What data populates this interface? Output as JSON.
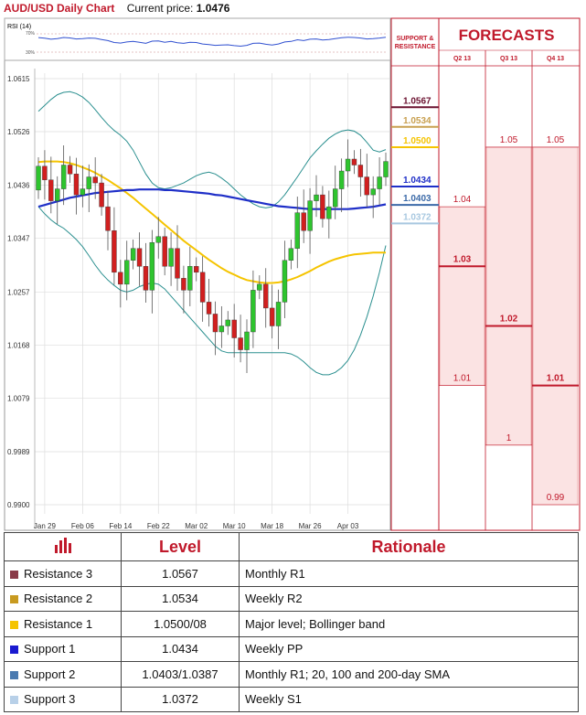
{
  "header": {
    "title": "AUD/USD Daily Chart",
    "price_label": "Current price:",
    "price_value": "1.0476"
  },
  "rsi": {
    "label": "RSI (14)",
    "ticks": [
      "70%",
      "30%"
    ]
  },
  "colors": {
    "red": "#c0192b",
    "pink": "#fbe3e3",
    "pink_border": "#e88a8a",
    "bb": "#2a8f8f",
    "sma_yellow": "#f5c400",
    "sma_blue": "#1f2fc8",
    "sma_gray": "#cccccc",
    "up": "#2ec42e",
    "down": "#d11f1f"
  },
  "chart_data": {
    "type": "candlestick",
    "title": "AUD/USD Daily Chart",
    "y_ticks": [
      1.0615,
      1.0526,
      1.0436,
      1.0347,
      1.0257,
      1.0168,
      1.0079,
      0.9989,
      0.99
    ],
    "ylim": [
      0.99,
      1.0615
    ],
    "x_ticks": [
      "Jan 29",
      "Feb 06",
      "Feb 14",
      "Feb 22",
      "Mar 02",
      "Mar 10",
      "Mar 18",
      "Mar 26",
      "Apr 03"
    ],
    "x_tick_index": [
      1,
      7,
      13,
      19,
      25,
      31,
      37,
      43,
      49
    ],
    "closes": [
      1.0468,
      1.0445,
      1.041,
      1.043,
      1.047,
      1.0455,
      1.042,
      1.043,
      1.045,
      1.044,
      1.04,
      1.036,
      1.029,
      1.027,
      1.031,
      1.033,
      1.03,
      1.026,
      1.034,
      1.035,
      1.03,
      1.033,
      1.028,
      1.026,
      1.03,
      1.029,
      1.024,
      1.022,
      1.019,
      1.02,
      1.021,
      1.018,
      1.016,
      1.019,
      1.026,
      1.027,
      1.023,
      1.02,
      1.024,
      1.031,
      1.033,
      1.039,
      1.036,
      1.041,
      1.042,
      1.038,
      1.04,
      1.043,
      1.046,
      1.048,
      1.047,
      1.045,
      1.042,
      1.043,
      1.045,
      1.0476
    ],
    "sma_yellow": [
      1.0475,
      1.0476,
      1.0476,
      1.0476,
      1.0475,
      1.0473,
      1.047,
      1.0466,
      1.0462,
      1.0457,
      1.0451,
      1.0445,
      1.0438,
      1.0431,
      1.0423,
      1.0415,
      1.0406,
      1.0397,
      1.0388,
      1.0379,
      1.037,
      1.0361,
      1.0352,
      1.0343,
      1.0335,
      1.0327,
      1.0319,
      1.0311,
      1.0304,
      1.0297,
      1.0291,
      1.0286,
      1.0281,
      1.0277,
      1.0275,
      1.0273,
      1.0272,
      1.0272,
      1.0273,
      1.0275,
      1.0278,
      1.0282,
      1.0287,
      1.0292,
      1.0298,
      1.0303,
      1.0308,
      1.0312,
      1.0315,
      1.0318,
      1.032,
      1.0321,
      1.0322,
      1.0323,
      1.0323,
      1.0323
    ],
    "sma_blue": [
      1.04,
      1.0403,
      1.0406,
      1.0409,
      1.0412,
      1.0415,
      1.0417,
      1.0419,
      1.0421,
      1.0423,
      1.0424,
      1.0425,
      1.0426,
      1.0427,
      1.0428,
      1.0428,
      1.0429,
      1.0429,
      1.0429,
      1.0429,
      1.0428,
      1.0428,
      1.0427,
      1.0426,
      1.0425,
      1.0424,
      1.0423,
      1.0422,
      1.042,
      1.0419,
      1.0417,
      1.0415,
      1.0413,
      1.0411,
      1.0409,
      1.0407,
      1.0405,
      1.0403,
      1.0401,
      1.04,
      1.0399,
      1.0398,
      1.0397,
      1.0396,
      1.0396,
      1.0396,
      1.0396,
      1.0396,
      1.0396,
      1.0396,
      1.0397,
      1.0398,
      1.0399,
      1.04,
      1.0402,
      1.0404
    ],
    "bb_upper": [
      1.056,
      1.057,
      1.058,
      1.0588,
      1.0592,
      1.0593,
      1.059,
      1.0584,
      1.0575,
      1.0563,
      1.055,
      1.0538,
      1.0528,
      1.052,
      1.051,
      1.0495,
      1.0475,
      1.0455,
      1.044,
      1.0432,
      1.043,
      1.0432,
      1.0436,
      1.044,
      1.0446,
      1.0452,
      1.0456,
      1.0458,
      1.0455,
      1.0448,
      1.044,
      1.043,
      1.042,
      1.0412,
      1.0405,
      1.04,
      1.0398,
      1.04,
      1.0408,
      1.042,
      1.0435,
      1.045,
      1.0466,
      1.0482,
      1.0494,
      1.0505,
      1.0515,
      1.0522,
      1.0527,
      1.0529,
      1.0527,
      1.052,
      1.0508,
      1.0495,
      1.0492,
      1.0496
    ],
    "bb_lower": [
      1.04,
      1.0388,
      1.0378,
      1.037,
      1.0364,
      1.0355,
      1.0345,
      1.0333,
      1.0318,
      1.0302,
      1.0288,
      1.0277,
      1.0268,
      1.026,
      1.0257,
      1.026,
      1.0266,
      1.027,
      1.0272,
      1.027,
      1.0262,
      1.025,
      1.0238,
      1.0226,
      1.0214,
      1.0202,
      1.019,
      1.0178,
      1.0166,
      1.0158,
      1.0155,
      1.0155,
      1.0155,
      1.0155,
      1.0155,
      1.0155,
      1.0155,
      1.0155,
      1.0155,
      1.0155,
      1.0153,
      1.0148,
      1.014,
      1.013,
      1.0122,
      1.0118,
      1.0118,
      1.0122,
      1.013,
      1.0142,
      1.016,
      1.0185,
      1.0215,
      1.025,
      1.029,
      1.0335
    ]
  },
  "panel": {
    "sr_label_1": "SUPPORT &",
    "sr_label_2": "RESISTANCE",
    "forecasts_title": "FORECASTS",
    "quarters": [
      "Q2 13",
      "Q3 13",
      "Q4 13"
    ],
    "sr_levels": [
      {
        "value": 1.0567,
        "label": "1.0567",
        "color": "#6b1230"
      },
      {
        "value": 1.0534,
        "label": "1.0534",
        "color": "#c8a050"
      },
      {
        "value": 1.05,
        "label": "1.0500",
        "color": "#f5c400"
      },
      {
        "value": 1.0434,
        "label": "1.0434",
        "color": "#1f2fc8"
      },
      {
        "value": 1.0403,
        "label": "1.0403",
        "color": "#3b6aa8"
      },
      {
        "value": 1.0372,
        "label": "1.0372",
        "color": "#a8c8e0"
      }
    ],
    "forecasts": [
      {
        "q": 0,
        "values": [
          {
            "value": 1.04,
            "label": "1.04",
            "bold": false
          },
          {
            "value": 1.03,
            "label": "1.03",
            "bold": true
          },
          {
            "value": 1.01,
            "label": "1.01",
            "bold": false
          }
        ]
      },
      {
        "q": 1,
        "values": [
          {
            "value": 1.05,
            "label": "1.05",
            "bold": false
          },
          {
            "value": 1.02,
            "label": "1.02",
            "bold": true
          },
          {
            "value": 1.0,
            "label": "1",
            "bold": false
          }
        ]
      },
      {
        "q": 2,
        "values": [
          {
            "value": 1.05,
            "label": "1.05",
            "bold": false
          },
          {
            "value": 1.01,
            "label": "1.01",
            "bold": true
          },
          {
            "value": 0.99,
            "label": "0.99",
            "bold": false
          }
        ]
      }
    ]
  },
  "table": {
    "headers": {
      "level": "Level",
      "rationale": "Rationale"
    },
    "rows": [
      {
        "name": "Resistance 3",
        "level": "1.0567",
        "rationale": "Monthly R1",
        "color": "#8a3a48"
      },
      {
        "name": "Resistance 2",
        "level": "1.0534",
        "rationale": "Weekly R2",
        "color": "#c89a20"
      },
      {
        "name": "Resistance 1",
        "level": "1.0500/08",
        "rationale": "Major level; Bollinger band",
        "color": "#f5c400"
      },
      {
        "name": "Support 1",
        "level": "1.0434",
        "rationale": "Weekly PP",
        "color": "#1a1ad0"
      },
      {
        "name": "Support 2",
        "level": "1.0403/1.0387",
        "rationale": "Monthly R1; 20, 100 and 200-day SMA",
        "color": "#4a7ab0"
      },
      {
        "name": "Support 3",
        "level": "1.0372",
        "rationale": "Weekly S1",
        "color": "#b8d0e8"
      }
    ]
  }
}
